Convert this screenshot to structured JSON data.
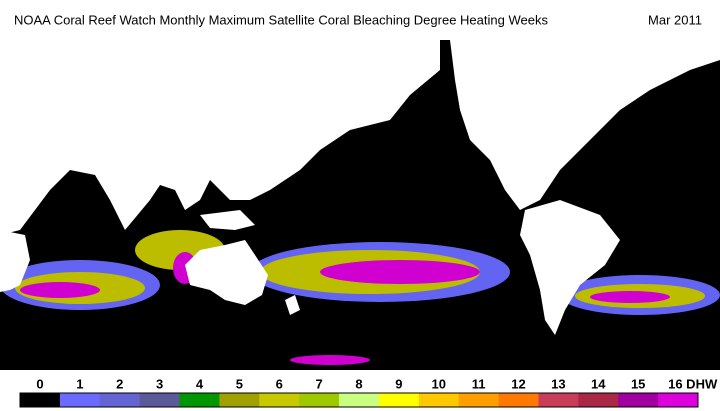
{
  "header": {
    "title": "NOAA Coral Reef Watch Monthly Maximum Satellite Coral Bleaching Degree Heating Weeks",
    "date": "Mar 2011"
  },
  "colorbar": {
    "ticks": [
      0,
      1,
      2,
      3,
      4,
      5,
      6,
      7,
      8,
      9,
      10,
      11,
      12,
      13,
      14,
      15,
      {
        "value": 16,
        "label": "16 DHW"
      }
    ],
    "colors": [
      "#000000",
      "#6a6aff",
      "#6464d2",
      "#5a5a9a",
      "#009600",
      "#a0a000",
      "#c8c800",
      "#a0c800",
      "#c8ff80",
      "#ffff00",
      "#ffc800",
      "#ffa000",
      "#ff7800",
      "#c83c5a",
      "#aa2846",
      "#a000a0",
      "#dc00dc"
    ]
  }
}
